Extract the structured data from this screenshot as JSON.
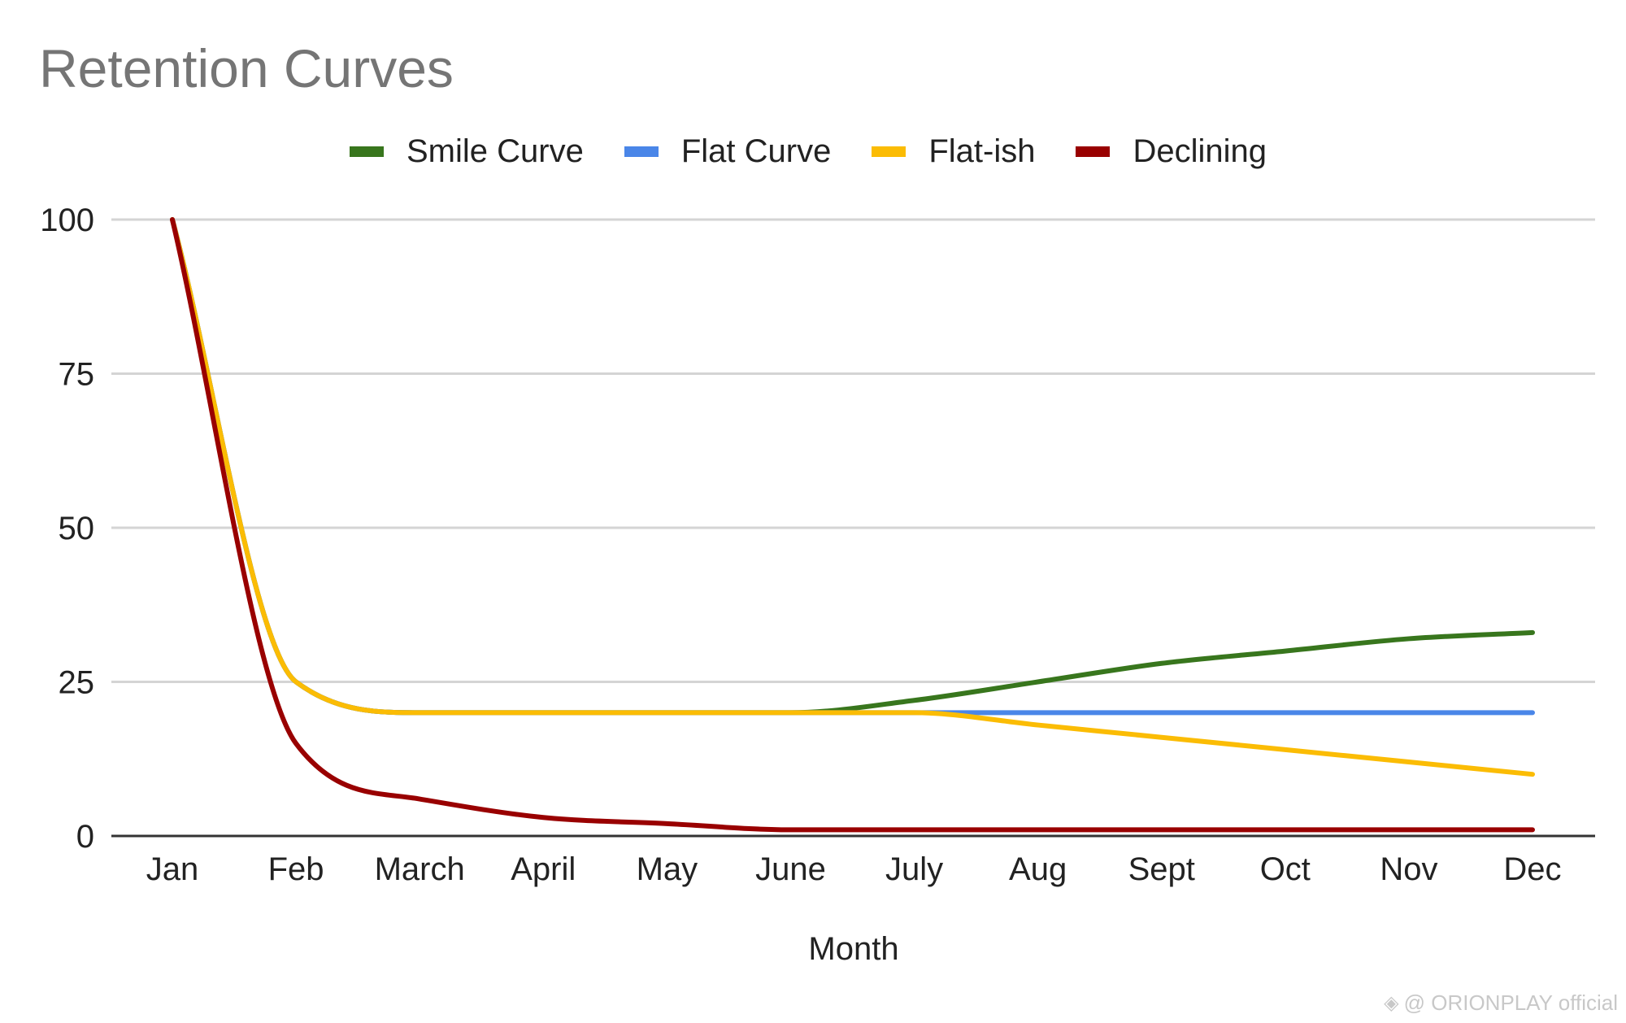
{
  "chart_data": {
    "type": "line",
    "title": "Retention Curves",
    "xlabel": "Month",
    "ylabel": "",
    "categories": [
      "Jan",
      "Feb",
      "March",
      "April",
      "May",
      "June",
      "July",
      "Aug",
      "Sept",
      "Oct",
      "Nov",
      "Dec"
    ],
    "ylim": [
      0,
      100
    ],
    "yticks": [
      0,
      25,
      50,
      75,
      100
    ],
    "grid": true,
    "legend_position": "top",
    "series": [
      {
        "name": "Smile Curve",
        "color": "#38761d",
        "values": [
          100,
          25,
          20,
          20,
          20,
          20,
          22,
          25,
          28,
          30,
          32,
          33
        ]
      },
      {
        "name": "Flat Curve",
        "color": "#4a86e8",
        "values": [
          100,
          25,
          20,
          20,
          20,
          20,
          20,
          20,
          20,
          20,
          20,
          20
        ]
      },
      {
        "name": "Flat-ish",
        "color": "#fbbc04",
        "values": [
          100,
          25,
          20,
          20,
          20,
          20,
          20,
          18,
          16,
          14,
          12,
          10
        ]
      },
      {
        "name": "Declining",
        "color": "#990000",
        "values": [
          100,
          15,
          6,
          3,
          2,
          1,
          1,
          1,
          1,
          1,
          1,
          1
        ]
      }
    ]
  },
  "watermark": {
    "text": "@ ORIONPLAY official",
    "logo_icon": "diamond-logo-icon"
  }
}
